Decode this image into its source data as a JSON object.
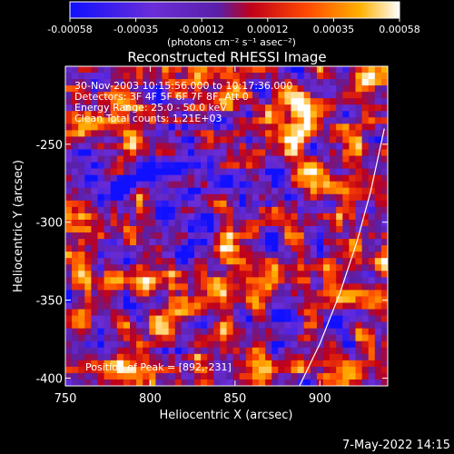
{
  "chart_data": {
    "type": "heatmap",
    "title": "Reconstructed RHESSI Image",
    "xlabel": "Heliocentric X (arcsec)",
    "ylabel": "Heliocentric Y (arcsec)",
    "xlim": [
      750,
      940
    ],
    "ylim": [
      -405,
      -200
    ],
    "xticks": [
      750,
      800,
      850,
      900
    ],
    "yticks": [
      -250,
      -300,
      -350,
      -400
    ],
    "colorbar": {
      "min": -0.00058,
      "max": 0.00058,
      "ticks": [
        "-0.00058",
        "-0.00035",
        "-0.00012",
        "0.00012",
        "0.00035",
        "0.00058"
      ],
      "unit_label": "(photons cm⁻² s⁻¹ asec⁻²)",
      "colors": [
        "#1010ff",
        "#6a2dd8",
        "#5a1fa8",
        "#c0001a",
        "#ff4a00",
        "#ffb000",
        "#ffffff"
      ]
    },
    "annotations": [
      "30-Nov-2003 10:15:56.000 to 10:17:36.000",
      "Detectors: 3F 4F 5F 6F 7F 8F, Att 0",
      "Energy Range: 25.0 - 50.0 keV",
      "Clean    Total counts: 1.21E+03"
    ],
    "peak_label": "Position of Peak = [892,-231]",
    "peak": [
      892,
      -231
    ],
    "limb_curve": [
      [
        888,
        -405
      ],
      [
        900,
        -378
      ],
      [
        912,
        -345
      ],
      [
        922,
        -312
      ],
      [
        930,
        -280
      ],
      [
        938,
        -240
      ]
    ],
    "footer_date": "7-May-2022 14:15"
  }
}
